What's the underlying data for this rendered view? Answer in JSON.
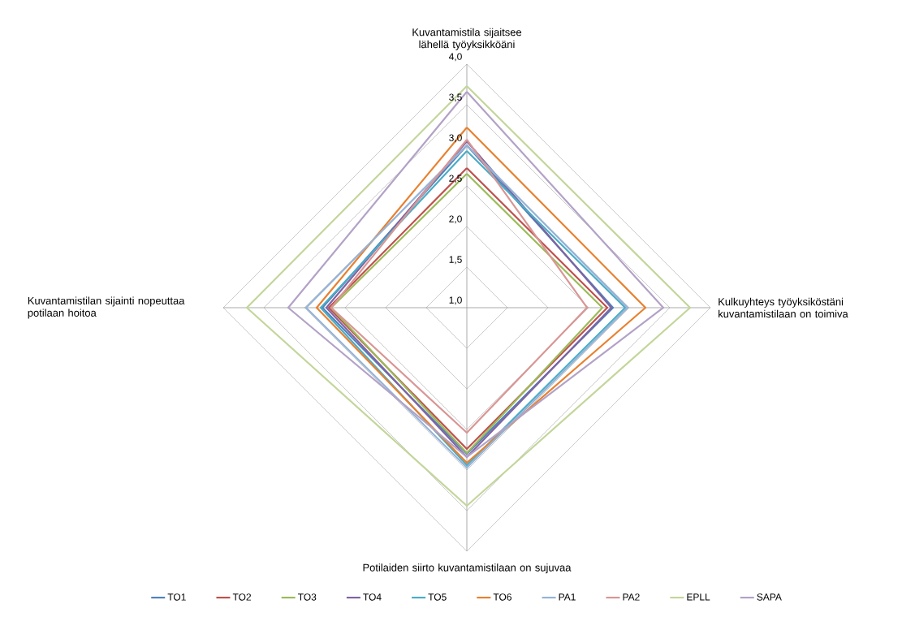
{
  "chart_data": {
    "type": "radar",
    "categories": [
      "Kuvantamistila sijaitsee lähellä työyksikköäni",
      "Kulkuyhteys työyksiköstäni kuvantamistilaan on toimiva",
      "Potilaiden siirto kuvantamistilaan on sujuvaa",
      "Kuvantamistilan sijainti nopeuttaa potilaan hoitoa"
    ],
    "ylim": [
      1,
      4
    ],
    "yticks": [
      {
        "value": 1,
        "label": "1,0"
      },
      {
        "value": 1.5,
        "label": "1,5"
      },
      {
        "value": 2,
        "label": "2,0"
      },
      {
        "value": 2.5,
        "label": "2,5"
      },
      {
        "value": 3,
        "label": "3,0"
      },
      {
        "value": 3.5,
        "label": "3,5"
      },
      {
        "value": 4,
        "label": "4,0"
      }
    ],
    "grid": true,
    "legend": "bottom",
    "marker": "none",
    "line_style": "solid",
    "series": [
      {
        "name": "TO1",
        "color": "#4f81bd",
        "values": [
          3.0,
          2.8,
          2.8,
          2.78
        ]
      },
      {
        "name": "TO2",
        "color": "#c0504d",
        "values": [
          2.72,
          2.73,
          2.74,
          2.7
        ]
      },
      {
        "name": "TO3",
        "color": "#9bbb59",
        "values": [
          2.65,
          2.67,
          2.79,
          2.67
        ]
      },
      {
        "name": "TO4",
        "color": "#8064a2",
        "values": [
          3.05,
          2.78,
          2.84,
          2.73
        ]
      },
      {
        "name": "TO5",
        "color": "#4bacc6",
        "values": [
          2.93,
          2.95,
          2.94,
          2.8
        ]
      },
      {
        "name": "TO6",
        "color": "#e8812f",
        "values": [
          3.22,
          3.2,
          2.91,
          2.85
        ]
      },
      {
        "name": "PA1",
        "color": "#95b3d7",
        "values": [
          3.0,
          2.98,
          2.97,
          2.98
        ]
      },
      {
        "name": "PA2",
        "color": "#d99694",
        "values": [
          3.07,
          2.48,
          2.54,
          2.67
        ]
      },
      {
        "name": "EPLL",
        "color": "#c3d69b",
        "values": [
          3.73,
          3.75,
          3.44,
          3.71
        ]
      },
      {
        "name": "SAPA",
        "color": "#b3a2c7",
        "values": [
          3.66,
          3.42,
          2.84,
          3.2
        ]
      }
    ]
  }
}
